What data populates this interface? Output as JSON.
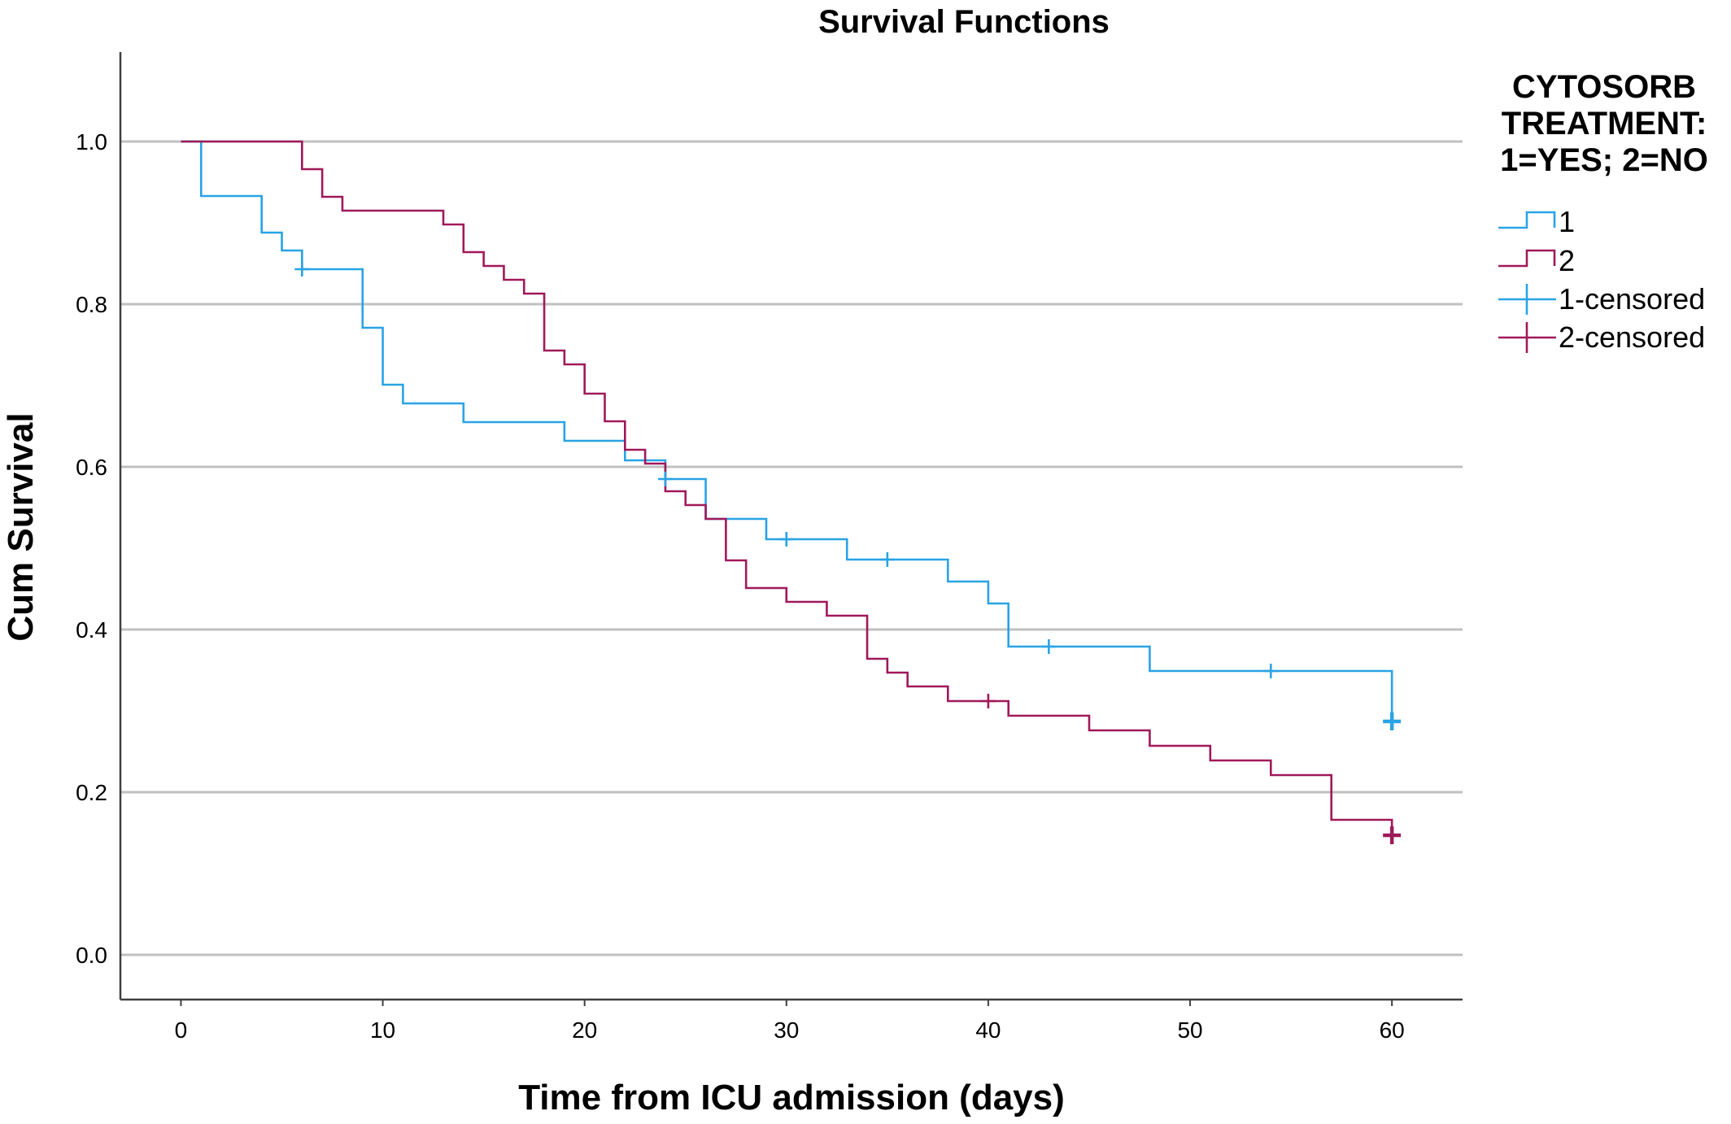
{
  "chart_data": {
    "type": "line",
    "title": "Survival Functions",
    "xlabel": "Time from ICU admission (days)",
    "ylabel": "Cum Survival",
    "xlim": [
      -3,
      63.5
    ],
    "ylim": [
      -0.055,
      1.11
    ],
    "x_ticks": [
      0,
      10,
      20,
      30,
      40,
      50,
      60
    ],
    "y_ticks": [
      0.0,
      0.2,
      0.4,
      0.6,
      0.8,
      1.0
    ],
    "y_tick_labels": [
      "0.0",
      "0.2",
      "0.4",
      "0.6",
      "0.8",
      "1.0"
    ],
    "grid": "horizontal",
    "step": true,
    "legend": {
      "position": "right",
      "title_lines": [
        "CYTOSORB",
        "TREATMENT:",
        "1=YES; 2=NO"
      ],
      "entries": [
        "1",
        "2",
        "1-censored",
        "2-censored"
      ]
    },
    "series": [
      {
        "name": "1",
        "color": "#29a3e6",
        "steps": [
          [
            0,
            1.0
          ],
          [
            1,
            0.933
          ],
          [
            4,
            0.888
          ],
          [
            5,
            0.866
          ],
          [
            6,
            0.843
          ],
          [
            9,
            0.771
          ],
          [
            10,
            0.701
          ],
          [
            11,
            0.678
          ],
          [
            14,
            0.655
          ],
          [
            19,
            0.632
          ],
          [
            22,
            0.608
          ],
          [
            24,
            0.585
          ],
          [
            26,
            0.536
          ],
          [
            29,
            0.511
          ],
          [
            33,
            0.486
          ],
          [
            38,
            0.459
          ],
          [
            40,
            0.432
          ],
          [
            41,
            0.379
          ],
          [
            48,
            0.349
          ],
          [
            60,
            0.287
          ]
        ],
        "censored": [
          6,
          24,
          30,
          35,
          43,
          54,
          60
        ]
      },
      {
        "name": "2",
        "color": "#a0195a",
        "steps": [
          [
            0,
            1.0
          ],
          [
            6,
            0.966
          ],
          [
            7,
            0.932
          ],
          [
            8,
            0.915
          ],
          [
            13,
            0.898
          ],
          [
            14,
            0.864
          ],
          [
            15,
            0.847
          ],
          [
            16,
            0.83
          ],
          [
            17,
            0.813
          ],
          [
            18,
            0.743
          ],
          [
            19,
            0.726
          ],
          [
            20,
            0.69
          ],
          [
            21,
            0.656
          ],
          [
            22,
            0.621
          ],
          [
            23,
            0.604
          ],
          [
            24,
            0.57
          ],
          [
            25,
            0.553
          ],
          [
            26,
            0.536
          ],
          [
            27,
            0.485
          ],
          [
            28,
            0.451
          ],
          [
            30,
            0.434
          ],
          [
            32,
            0.417
          ],
          [
            34,
            0.364
          ],
          [
            35,
            0.347
          ],
          [
            36,
            0.33
          ],
          [
            38,
            0.312
          ],
          [
            41,
            0.294
          ],
          [
            45,
            0.276
          ],
          [
            48,
            0.257
          ],
          [
            51,
            0.239
          ],
          [
            54,
            0.221
          ],
          [
            57,
            0.166
          ],
          [
            60,
            0.147
          ]
        ],
        "censored": [
          40,
          60
        ]
      }
    ]
  }
}
